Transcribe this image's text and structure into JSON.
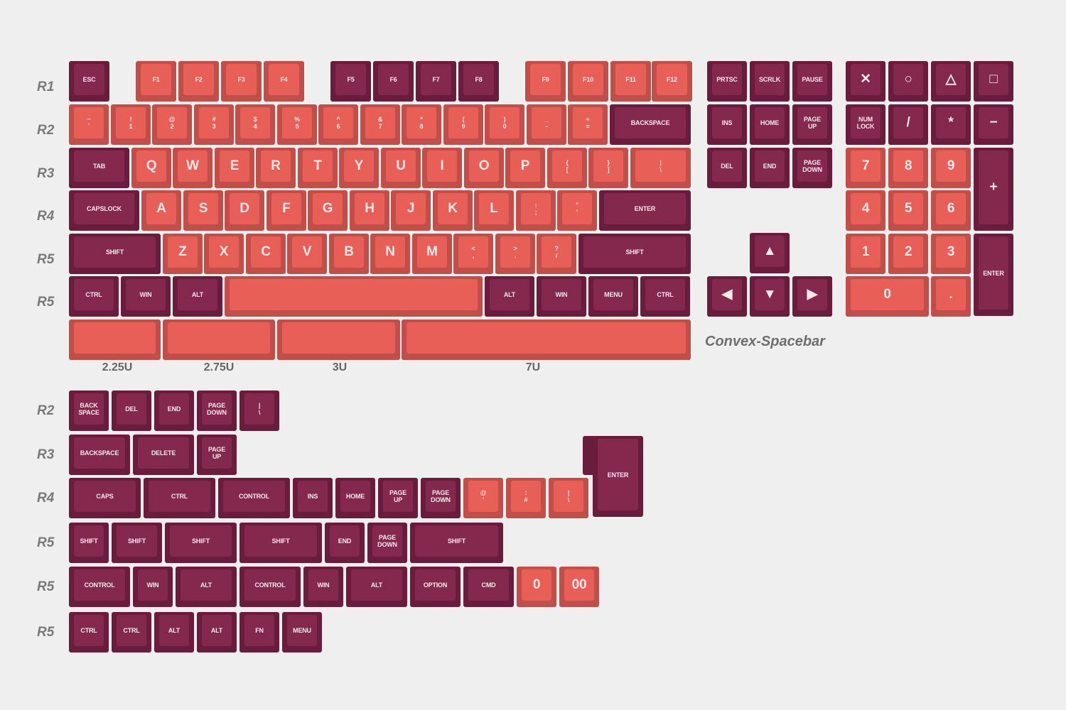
{
  "main": {
    "rows": [
      {
        "label": "R1",
        "keys": [
          {
            "l": "ESC",
            "c": "d"
          },
          {
            "l": "F1",
            "c": "c"
          },
          {
            "l": "F2",
            "c": "c"
          },
          {
            "l": "F3",
            "c": "c"
          },
          {
            "l": "F4",
            "c": "c"
          },
          {
            "l": "F5",
            "c": "d"
          },
          {
            "l": "F6",
            "c": "d"
          },
          {
            "l": "F7",
            "c": "d"
          },
          {
            "l": "F8",
            "c": "d"
          },
          {
            "l": "F9",
            "c": "c"
          },
          {
            "l": "F10",
            "c": "c"
          },
          {
            "l": "F11",
            "c": "c"
          },
          {
            "l": "F12",
            "c": "c"
          }
        ]
      },
      {
        "label": "R2",
        "keys": [
          {
            "l": "~\n`",
            "c": "c"
          },
          {
            "l": "!\n1",
            "c": "c"
          },
          {
            "l": "@\n2",
            "c": "c"
          },
          {
            "l": "#\n3",
            "c": "c"
          },
          {
            "l": "$\n4",
            "c": "c"
          },
          {
            "l": "%\n5",
            "c": "c"
          },
          {
            "l": "^\n6",
            "c": "c"
          },
          {
            "l": "&\n7",
            "c": "c"
          },
          {
            "l": "*\n8",
            "c": "c"
          },
          {
            "l": "(\n9",
            "c": "c"
          },
          {
            "l": ")\n0",
            "c": "c"
          },
          {
            "l": "_\n-",
            "c": "c"
          },
          {
            "l": "+\n=",
            "c": "c"
          },
          {
            "l": "BACKSPACE",
            "c": "d"
          }
        ]
      },
      {
        "label": "R3",
        "keys": [
          {
            "l": "TAB",
            "c": "d"
          },
          {
            "l": "Q",
            "c": "c"
          },
          {
            "l": "W",
            "c": "c"
          },
          {
            "l": "E",
            "c": "c"
          },
          {
            "l": "R",
            "c": "c"
          },
          {
            "l": "T",
            "c": "c"
          },
          {
            "l": "Y",
            "c": "c"
          },
          {
            "l": "U",
            "c": "c"
          },
          {
            "l": "I",
            "c": "c"
          },
          {
            "l": "O",
            "c": "c"
          },
          {
            "l": "P",
            "c": "c"
          },
          {
            "l": "{\n[",
            "c": "c"
          },
          {
            "l": "}\n]",
            "c": "c"
          },
          {
            "l": "|\n\\",
            "c": "c"
          }
        ]
      },
      {
        "label": "R4",
        "keys": [
          {
            "l": "CAPSLOCK",
            "c": "d"
          },
          {
            "l": "A",
            "c": "c"
          },
          {
            "l": "S",
            "c": "c"
          },
          {
            "l": "D",
            "c": "c"
          },
          {
            "l": "F",
            "c": "c"
          },
          {
            "l": "G",
            "c": "c"
          },
          {
            "l": "H",
            "c": "c"
          },
          {
            "l": "J",
            "c": "c"
          },
          {
            "l": "K",
            "c": "c"
          },
          {
            "l": "L",
            "c": "c"
          },
          {
            "l": ":\n;",
            "c": "c"
          },
          {
            "l": "\"\n'",
            "c": "c"
          },
          {
            "l": "ENTER",
            "c": "d"
          }
        ]
      },
      {
        "label": "R5",
        "keys": [
          {
            "l": "SHIFT",
            "c": "d"
          },
          {
            "l": "Z",
            "c": "c"
          },
          {
            "l": "X",
            "c": "c"
          },
          {
            "l": "C",
            "c": "c"
          },
          {
            "l": "V",
            "c": "c"
          },
          {
            "l": "B",
            "c": "c"
          },
          {
            "l": "N",
            "c": "c"
          },
          {
            "l": "M",
            "c": "c"
          },
          {
            "l": "<\n,",
            "c": "c"
          },
          {
            "l": ">\n.",
            "c": "c"
          },
          {
            "l": "?\n/",
            "c": "c"
          },
          {
            "l": "SHIFT",
            "c": "d"
          }
        ]
      },
      {
        "label": "R5",
        "keys": [
          {
            "l": "CTRL",
            "c": "d"
          },
          {
            "l": "WIN",
            "c": "d"
          },
          {
            "l": "ALT",
            "c": "d"
          },
          {
            "l": "",
            "c": "c"
          },
          {
            "l": "ALT",
            "c": "d"
          },
          {
            "l": "WIN",
            "c": "d"
          },
          {
            "l": "MENU",
            "c": "d"
          },
          {
            "l": "CTRL",
            "c": "d"
          }
        ]
      }
    ]
  },
  "spacebars": {
    "keys": [
      {
        "l": "",
        "c": "c"
      },
      {
        "l": "",
        "c": "c"
      },
      {
        "l": "",
        "c": "c"
      },
      {
        "l": "",
        "c": "c"
      }
    ],
    "sizes": [
      "2.25U",
      "2.75U",
      "3U",
      "7U"
    ],
    "caption": "Convex-Spacebar"
  },
  "nav": {
    "keys": [
      {
        "l": "PRTSC",
        "c": "d"
      },
      {
        "l": "SCRLK",
        "c": "d"
      },
      {
        "l": "PAUSE",
        "c": "d"
      },
      {
        "l": "INS",
        "c": "d"
      },
      {
        "l": "HOME",
        "c": "d"
      },
      {
        "l": "PAGE\nUP",
        "c": "d"
      },
      {
        "l": "DEL",
        "c": "d"
      },
      {
        "l": "END",
        "c": "d"
      },
      {
        "l": "PAGE\nDOWN",
        "c": "d"
      },
      {
        "l": "▲",
        "c": "d"
      },
      {
        "l": "◀",
        "c": "d"
      },
      {
        "l": "▼",
        "c": "d"
      },
      {
        "l": "▶",
        "c": "d"
      }
    ]
  },
  "numpad": {
    "keys": [
      {
        "l": "✕",
        "c": "d"
      },
      {
        "l": "○",
        "c": "d"
      },
      {
        "l": "△",
        "c": "d"
      },
      {
        "l": "□",
        "c": "d"
      },
      {
        "l": "NUM\nLOCK",
        "c": "d"
      },
      {
        "l": "/",
        "c": "d"
      },
      {
        "l": "*",
        "c": "d"
      },
      {
        "l": "−",
        "c": "d"
      },
      {
        "l": "7",
        "c": "c"
      },
      {
        "l": "8",
        "c": "c"
      },
      {
        "l": "9",
        "c": "c"
      },
      {
        "l": "+",
        "c": "d"
      },
      {
        "l": "4",
        "c": "c"
      },
      {
        "l": "5",
        "c": "c"
      },
      {
        "l": "6",
        "c": "c"
      },
      {
        "l": "1",
        "c": "c"
      },
      {
        "l": "2",
        "c": "c"
      },
      {
        "l": "3",
        "c": "c"
      },
      {
        "l": "ENTER",
        "c": "d"
      },
      {
        "l": "0",
        "c": "c"
      },
      {
        "l": ".",
        "c": "c"
      }
    ]
  },
  "extras": {
    "rows": [
      {
        "label": "R2",
        "keys": [
          {
            "l": "BACK\nSPACE",
            "c": "d"
          },
          {
            "l": "DEL",
            "c": "d"
          },
          {
            "l": "END",
            "c": "d"
          },
          {
            "l": "PAGE\nDOWN",
            "c": "d"
          },
          {
            "l": "|\n\\",
            "c": "d"
          }
        ]
      },
      {
        "label": "R3",
        "keys": [
          {
            "l": "BACKSPACE",
            "c": "d"
          },
          {
            "l": "DELETE",
            "c": "d"
          },
          {
            "l": "PAGE\nUP",
            "c": "d"
          }
        ]
      },
      {
        "label": "R4",
        "keys": [
          {
            "l": "CAPS",
            "c": "d"
          },
          {
            "l": "CTRL",
            "c": "d"
          },
          {
            "l": "CONTROL",
            "c": "d"
          },
          {
            "l": "INS",
            "c": "d"
          },
          {
            "l": "HOME",
            "c": "d"
          },
          {
            "l": "PAGE\nUP",
            "c": "d"
          },
          {
            "l": "PAGE\nDOWN",
            "c": "d"
          },
          {
            "l": "@\n'",
            "c": "c"
          },
          {
            "l": ":\n#",
            "c": "c"
          },
          {
            "l": "|\n\\",
            "c": "c"
          },
          {
            "l": "ENTER",
            "c": "d"
          }
        ]
      },
      {
        "label": "R5",
        "keys": [
          {
            "l": "SHIFT",
            "c": "d"
          },
          {
            "l": "SHIFT",
            "c": "d"
          },
          {
            "l": "SHIFT",
            "c": "d"
          },
          {
            "l": "SHIFT",
            "c": "d"
          },
          {
            "l": "END",
            "c": "d"
          },
          {
            "l": "PAGE\nDOWN",
            "c": "d"
          },
          {
            "l": "SHIFT",
            "c": "d"
          }
        ]
      },
      {
        "label": "R5",
        "keys": [
          {
            "l": "CONTROL",
            "c": "d"
          },
          {
            "l": "WIN",
            "c": "d"
          },
          {
            "l": "ALT",
            "c": "d"
          },
          {
            "l": "CONTROL",
            "c": "d"
          },
          {
            "l": "WIN",
            "c": "d"
          },
          {
            "l": "ALT",
            "c": "d"
          },
          {
            "l": "OPTION",
            "c": "d"
          },
          {
            "l": "CMD",
            "c": "d"
          },
          {
            "l": "0",
            "c": "c"
          },
          {
            "l": "00",
            "c": "c"
          }
        ]
      },
      {
        "label": "R5",
        "keys": [
          {
            "l": "CTRL",
            "c": "d"
          },
          {
            "l": "CTRL",
            "c": "d"
          },
          {
            "l": "ALT",
            "c": "d"
          },
          {
            "l": "ALT",
            "c": "d"
          },
          {
            "l": "FN",
            "c": "d"
          },
          {
            "l": "MENU",
            "c": "d"
          }
        ]
      }
    ]
  }
}
